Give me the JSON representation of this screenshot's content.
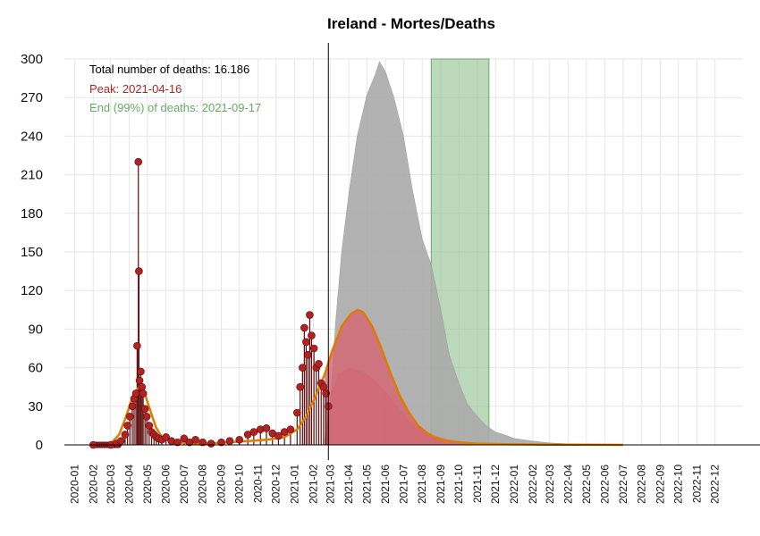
{
  "chart_data": {
    "type": "line",
    "title": "Ireland - Mortes/Deaths",
    "xlabel": "",
    "ylabel": "",
    "ylim": [
      0,
      300
    ],
    "y_ticks": [
      0,
      30,
      60,
      90,
      120,
      150,
      180,
      210,
      240,
      270,
      300
    ],
    "x_ticks": [
      "2020-01",
      "2020-02",
      "2020-03",
      "2020-04",
      "2020-05",
      "2020-06",
      "2020-07",
      "2020-08",
      "2020-09",
      "2020-10",
      "2020-11",
      "2020-12",
      "2021-01",
      "2021-02",
      "2021-03",
      "2021-04",
      "2021-05",
      "2021-06",
      "2021-07",
      "2021-08",
      "2021-09",
      "2021-10",
      "2021-11",
      "2021-12",
      "2022-01",
      "2022-02",
      "2022-03",
      "2022-04",
      "2022-05",
      "2022-06",
      "2022-07",
      "2022-08",
      "2022-09",
      "2022-10",
      "2022-11",
      "2022-12"
    ],
    "xlim": [
      "2019-12-15",
      "2023-01-15"
    ],
    "grid": true,
    "annotations": {
      "total": "Total number of deaths: 16.186",
      "peak": "Peak: 2021-04-16",
      "end": "End (99%) of deaths: 2021-09-17"
    },
    "colors": {
      "observed": "#b22222",
      "observed_stem": "#5a0a0a",
      "fit": "#e07b00",
      "fit_fill": "#d46470",
      "projection": "#aaaaaa",
      "end_band": "#8fbf8f",
      "annotation_total": "#000000",
      "annotation_peak": "#b22222",
      "annotation_end": "#6aa86a"
    },
    "vertical_line": "2021-02-26",
    "end_band": [
      "2021-08-16",
      "2021-11-20"
    ],
    "observed_daily": [
      [
        "2020-02-01",
        0
      ],
      [
        "2020-03-01",
        0
      ],
      [
        "2020-03-11",
        1
      ],
      [
        "2020-03-18",
        3
      ],
      [
        "2020-03-25",
        8
      ],
      [
        "2020-03-29",
        15
      ],
      [
        "2020-04-02",
        22
      ],
      [
        "2020-04-06",
        30
      ],
      [
        "2020-04-09",
        36
      ],
      [
        "2020-04-12",
        40
      ],
      [
        "2020-04-14",
        77
      ],
      [
        "2020-04-16",
        220
      ],
      [
        "2020-04-17",
        135
      ],
      [
        "2020-04-18",
        50
      ],
      [
        "2020-04-20",
        57
      ],
      [
        "2020-04-22",
        45
      ],
      [
        "2020-04-24",
        40
      ],
      [
        "2020-04-27",
        28
      ],
      [
        "2020-04-30",
        22
      ],
      [
        "2020-05-04",
        15
      ],
      [
        "2020-05-08",
        10
      ],
      [
        "2020-05-12",
        8
      ],
      [
        "2020-05-16",
        6
      ],
      [
        "2020-05-20",
        5
      ],
      [
        "2020-05-25",
        4
      ],
      [
        "2020-06-01",
        6
      ],
      [
        "2020-06-10",
        3
      ],
      [
        "2020-06-20",
        2
      ],
      [
        "2020-07-01",
        5
      ],
      [
        "2020-07-10",
        2
      ],
      [
        "2020-07-20",
        4
      ],
      [
        "2020-08-01",
        2
      ],
      [
        "2020-08-15",
        1
      ],
      [
        "2020-09-01",
        2
      ],
      [
        "2020-09-15",
        3
      ],
      [
        "2020-10-01",
        4
      ],
      [
        "2020-10-15",
        8
      ],
      [
        "2020-10-25",
        10
      ],
      [
        "2020-11-05",
        12
      ],
      [
        "2020-11-15",
        13
      ],
      [
        "2020-11-25",
        9
      ],
      [
        "2020-12-05",
        7
      ],
      [
        "2020-12-15",
        10
      ],
      [
        "2020-12-25",
        12
      ],
      [
        "2021-01-05",
        25
      ],
      [
        "2021-01-10",
        45
      ],
      [
        "2021-01-14",
        60
      ],
      [
        "2021-01-17",
        91
      ],
      [
        "2021-01-20",
        80
      ],
      [
        "2021-01-23",
        70
      ],
      [
        "2021-01-26",
        101
      ],
      [
        "2021-01-29",
        85
      ],
      [
        "2021-02-02",
        75
      ],
      [
        "2021-02-06",
        60
      ],
      [
        "2021-02-10",
        63
      ],
      [
        "2021-02-14",
        48
      ],
      [
        "2021-02-18",
        45
      ],
      [
        "2021-02-22",
        40
      ],
      [
        "2021-02-26",
        30
      ]
    ],
    "fit_curve": [
      [
        "2020-02-01",
        0
      ],
      [
        "2020-03-01",
        1
      ],
      [
        "2020-03-15",
        8
      ],
      [
        "2020-03-25",
        20
      ],
      [
        "2020-04-05",
        35
      ],
      [
        "2020-04-15",
        44
      ],
      [
        "2020-04-20",
        45
      ],
      [
        "2020-04-25",
        42
      ],
      [
        "2020-05-05",
        28
      ],
      [
        "2020-05-15",
        14
      ],
      [
        "2020-05-25",
        6
      ],
      [
        "2020-06-15",
        2
      ],
      [
        "2020-08-01",
        1
      ],
      [
        "2020-09-15",
        2
      ],
      [
        "2020-10-15",
        3
      ],
      [
        "2020-11-15",
        4
      ],
      [
        "2020-12-15",
        6
      ],
      [
        "2021-01-05",
        12
      ],
      [
        "2021-01-20",
        22
      ],
      [
        "2021-02-05",
        38
      ],
      [
        "2021-02-20",
        55
      ],
      [
        "2021-03-05",
        74
      ],
      [
        "2021-03-20",
        92
      ],
      [
        "2021-04-05",
        102
      ],
      [
        "2021-04-16",
        105
      ],
      [
        "2021-04-25",
        103
      ],
      [
        "2021-05-10",
        92
      ],
      [
        "2021-05-25",
        75
      ],
      [
        "2021-06-10",
        55
      ],
      [
        "2021-06-25",
        38
      ],
      [
        "2021-07-10",
        25
      ],
      [
        "2021-07-25",
        15
      ],
      [
        "2021-08-10",
        9
      ],
      [
        "2021-08-25",
        5
      ],
      [
        "2021-09-10",
        3
      ],
      [
        "2021-10-01",
        2
      ],
      [
        "2021-11-01",
        1
      ],
      [
        "2021-12-15",
        0.5
      ],
      [
        "2022-03-01",
        0.2
      ],
      [
        "2022-07-01",
        0
      ]
    ],
    "projection_envelope": [
      [
        "2021-02-20",
        5
      ],
      [
        "2021-03-01",
        30
      ],
      [
        "2021-03-10",
        95
      ],
      [
        "2021-03-20",
        150
      ],
      [
        "2021-04-01",
        195
      ],
      [
        "2021-04-15",
        240
      ],
      [
        "2021-05-01",
        272
      ],
      [
        "2021-05-15",
        288
      ],
      [
        "2021-05-22",
        298
      ],
      [
        "2021-06-01",
        290
      ],
      [
        "2021-06-15",
        270
      ],
      [
        "2021-07-01",
        240
      ],
      [
        "2021-07-15",
        200
      ],
      [
        "2021-08-01",
        160
      ],
      [
        "2021-08-16",
        140
      ],
      [
        "2021-09-01",
        105
      ],
      [
        "2021-09-15",
        70
      ],
      [
        "2021-10-01",
        48
      ],
      [
        "2021-10-15",
        32
      ],
      [
        "2021-11-01",
        22
      ],
      [
        "2021-11-15",
        15
      ],
      [
        "2021-12-01",
        10
      ],
      [
        "2021-12-15",
        8
      ],
      [
        "2022-01-01",
        5
      ],
      [
        "2022-02-01",
        3
      ],
      [
        "2022-03-01",
        1.5
      ],
      [
        "2022-04-15",
        0.5
      ],
      [
        "2022-07-01",
        0
      ]
    ],
    "projection_lower": [
      [
        "2021-02-20",
        0
      ],
      [
        "2021-03-01",
        40
      ],
      [
        "2021-03-15",
        55
      ],
      [
        "2021-04-01",
        60
      ],
      [
        "2021-04-20",
        58
      ],
      [
        "2021-05-10",
        52
      ],
      [
        "2021-06-01",
        42
      ],
      [
        "2021-06-20",
        30
      ],
      [
        "2021-07-10",
        20
      ],
      [
        "2021-08-01",
        12
      ],
      [
        "2021-08-16",
        8
      ],
      [
        "2021-09-15",
        4
      ],
      [
        "2021-10-15",
        2
      ],
      [
        "2021-11-15",
        1
      ],
      [
        "2022-01-01",
        0
      ]
    ]
  }
}
